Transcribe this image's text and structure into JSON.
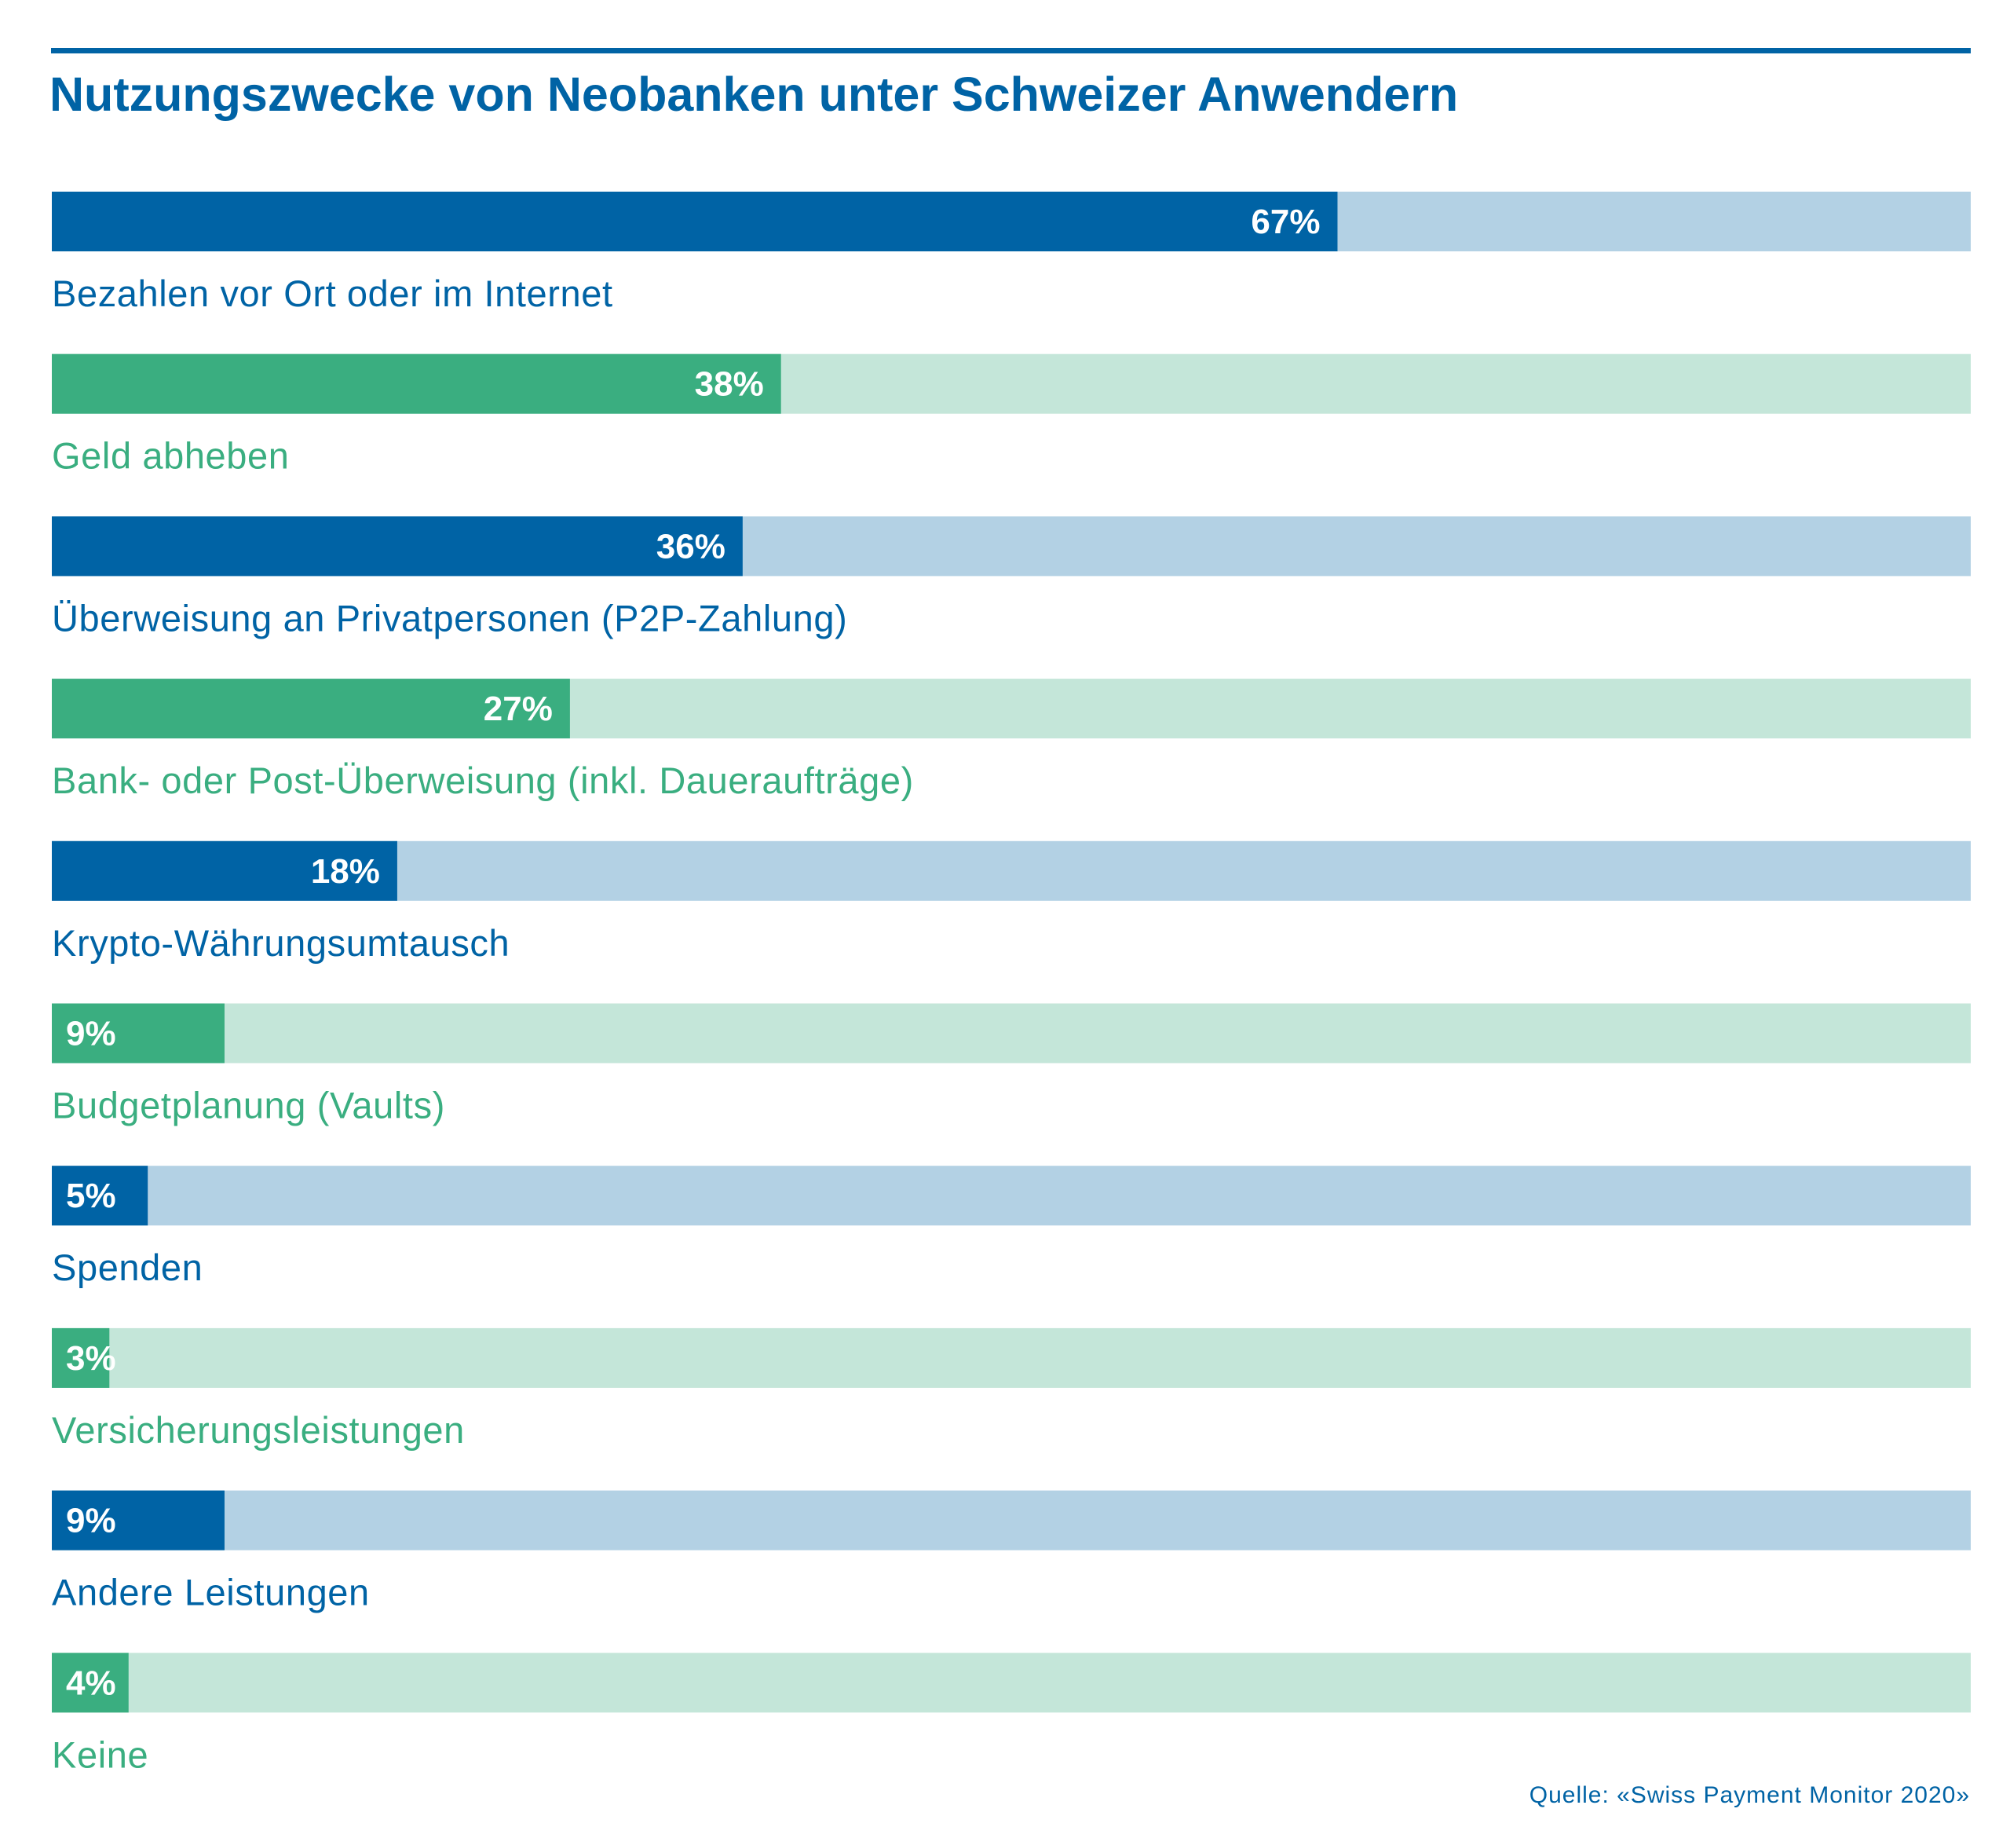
{
  "colors": {
    "blue_bar": "#0063a5",
    "blue_track": "#b3d1e4",
    "green_bar": "#3aae80",
    "green_track": "#c4e6d9",
    "value_label": "#ffffff"
  },
  "source_note": "Quelle: «Swiss Payment Monitor 2020»",
  "chart_data": {
    "type": "bar",
    "orientation": "horizontal",
    "title": "Nutzungszwecke von Neobanken unter Schweizer Anwendern",
    "xlim": [
      0,
      100
    ],
    "unit": "%",
    "grid": false,
    "legend": "none",
    "categories": [
      "Bezahlen vor Ort oder im Internet",
      "Geld abheben",
      "Überweisung an Privatpersonen (P2P-Zahlung)",
      "Bank- oder Post-Überweisung (inkl. Daueraufträge)",
      "Krypto-Währungsumtausch",
      "Budgetplanung (Vaults)",
      "Spenden",
      "Versicherungsleistungen",
      "Andere Leistungen",
      "Keine"
    ],
    "values": [
      67,
      38,
      36,
      27,
      18,
      9,
      5,
      3,
      9,
      4
    ],
    "value_labels": [
      "67%",
      "38%",
      "36%",
      "27%",
      "18%",
      "9%",
      "5%",
      "3%",
      "9%",
      "4%"
    ],
    "bar_colors": [
      "blue",
      "green",
      "blue",
      "green",
      "blue",
      "green",
      "blue",
      "green",
      "blue",
      "green"
    ]
  }
}
